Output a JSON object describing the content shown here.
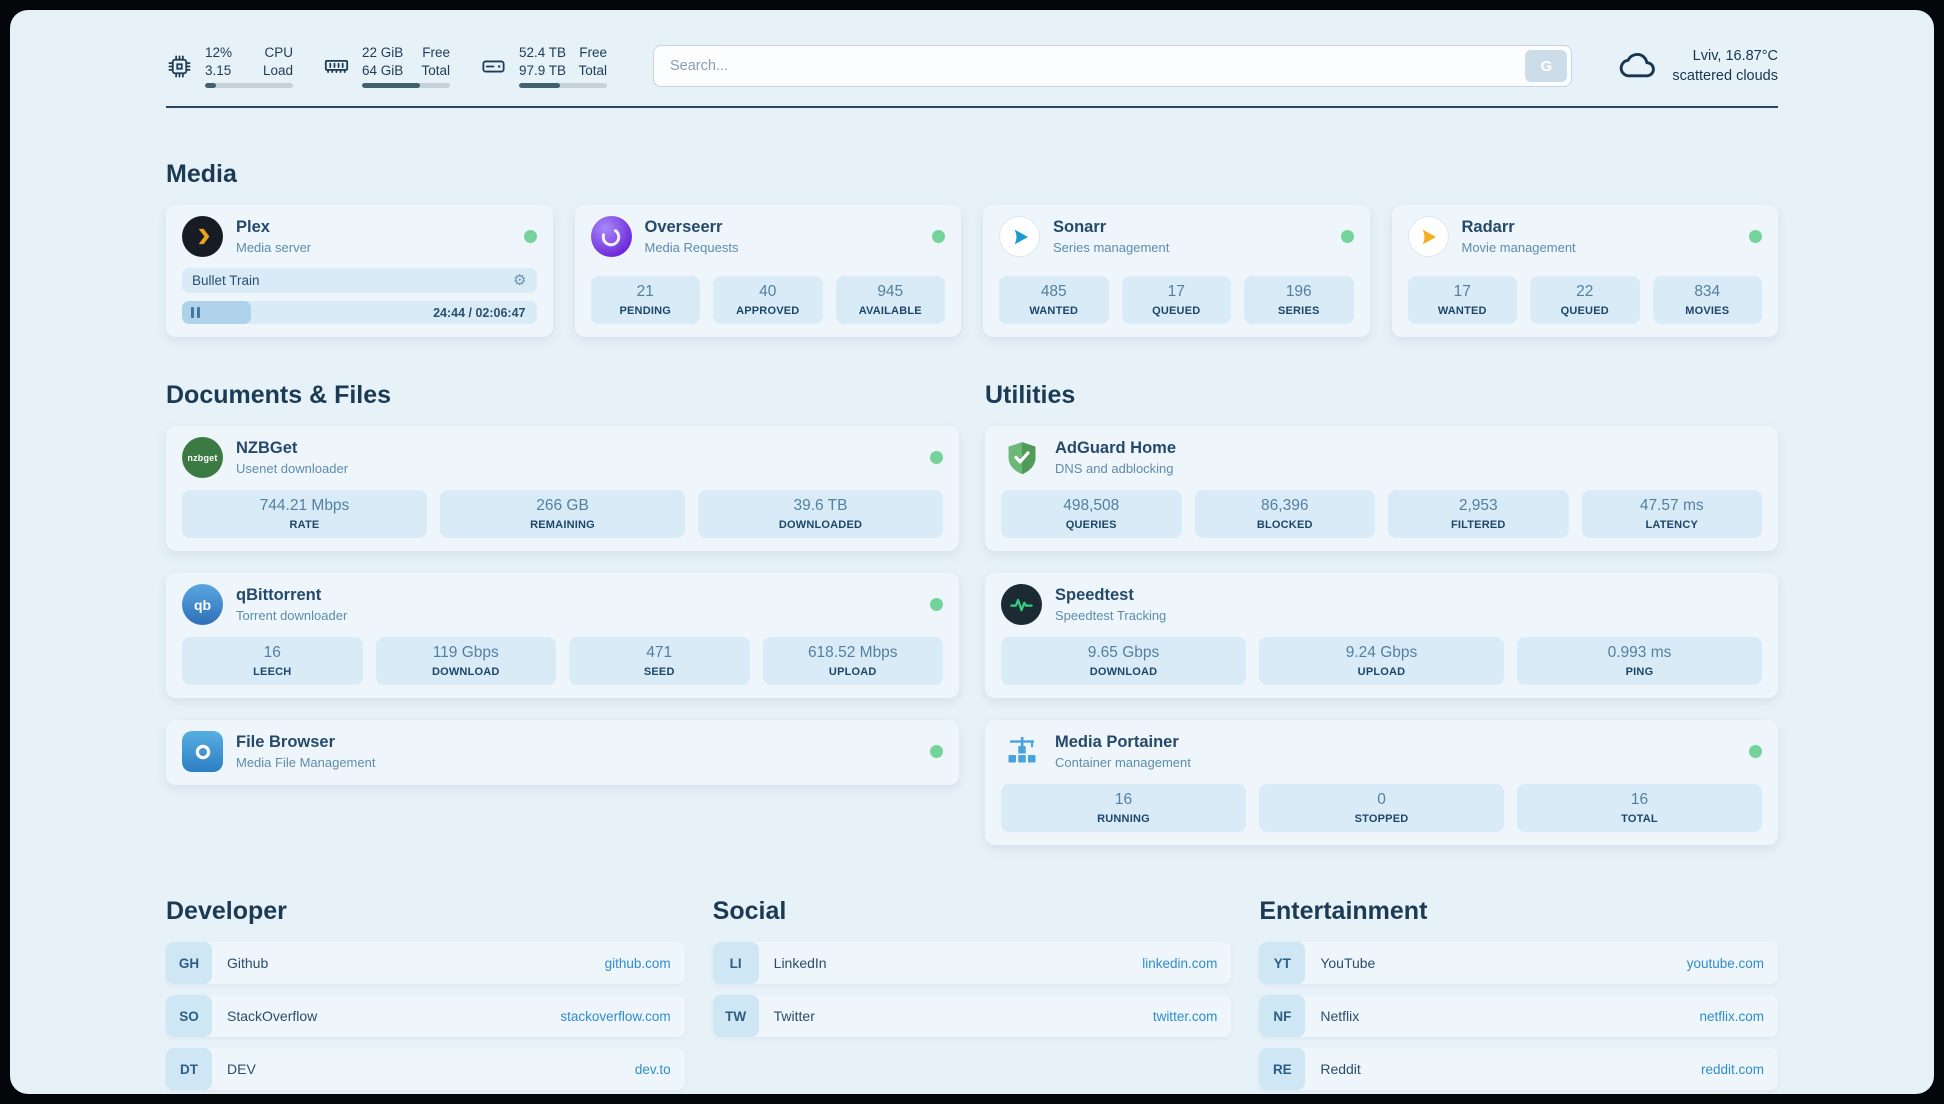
{
  "header": {
    "cpu": {
      "value": "12%",
      "sub": "3.15",
      "label_top": "CPU",
      "label_bottom": "Load",
      "progress_pct": 12
    },
    "ram": {
      "value": "22 GiB",
      "sub": "64 GiB",
      "label_top": "Free",
      "label_bottom": "Total",
      "progress_pct": 66
    },
    "disk": {
      "value": "52.4 TB",
      "sub": "97.9 TB",
      "label_top": "Free",
      "label_bottom": "Total",
      "progress_pct": 47
    },
    "search": {
      "placeholder": "Search...",
      "button_label": "G"
    },
    "weather": {
      "location": "Lviv, 16.87°C",
      "condition": "scattered clouds"
    }
  },
  "icons": {
    "gear": "⚙"
  },
  "media": {
    "title": "Media",
    "plex": {
      "name": "Plex",
      "subtitle": "Media server",
      "now_playing": "Bullet Train",
      "time": "24:44 / 02:06:47",
      "progress_pct": 19.5
    },
    "overseerr": {
      "name": "Overseerr",
      "subtitle": "Media Requests",
      "stats": [
        {
          "value": "21",
          "label": "PENDING"
        },
        {
          "value": "40",
          "label": "APPROVED"
        },
        {
          "value": "945",
          "label": "AVAILABLE"
        }
      ]
    },
    "sonarr": {
      "name": "Sonarr",
      "subtitle": "Series management",
      "stats": [
        {
          "value": "485",
          "label": "WANTED"
        },
        {
          "value": "17",
          "label": "QUEUED"
        },
        {
          "value": "196",
          "label": "SERIES"
        }
      ]
    },
    "radarr": {
      "name": "Radarr",
      "subtitle": "Movie management",
      "stats": [
        {
          "value": "17",
          "label": "WANTED"
        },
        {
          "value": "22",
          "label": "QUEUED"
        },
        {
          "value": "834",
          "label": "MOVIES"
        }
      ]
    }
  },
  "documents": {
    "title": "Documents & Files",
    "nzbget": {
      "name": "NZBGet",
      "subtitle": "Usenet downloader",
      "icon_text": "nzbget",
      "stats": [
        {
          "value": "744.21 Mbps",
          "label": "RATE"
        },
        {
          "value": "266 GB",
          "label": "REMAINING"
        },
        {
          "value": "39.6 TB",
          "label": "DOWNLOADED"
        }
      ]
    },
    "qbittorrent": {
      "name": "qBittorrent",
      "subtitle": "Torrent downloader",
      "icon_text": "qb",
      "stats": [
        {
          "value": "16",
          "label": "LEECH"
        },
        {
          "value": "119 Gbps",
          "label": "DOWNLOAD"
        },
        {
          "value": "471",
          "label": "SEED"
        },
        {
          "value": "618.52 Mbps",
          "label": "UPLOAD"
        }
      ]
    },
    "filebrowser": {
      "name": "File Browser",
      "subtitle": "Media File Management"
    }
  },
  "utilities": {
    "title": "Utilities",
    "adguard": {
      "name": "AdGuard Home",
      "subtitle": "DNS and adblocking",
      "stats": [
        {
          "value": "498,508",
          "label": "QUERIES"
        },
        {
          "value": "86,396",
          "label": "BLOCKED"
        },
        {
          "value": "2,953",
          "label": "FILTERED"
        },
        {
          "value": "47.57 ms",
          "label": "LATENCY"
        }
      ]
    },
    "speedtest": {
      "name": "Speedtest",
      "subtitle": "Speedtest Tracking",
      "stats": [
        {
          "value": "9.65 Gbps",
          "label": "DOWNLOAD"
        },
        {
          "value": "9.24 Gbps",
          "label": "UPLOAD"
        },
        {
          "value": "0.993 ms",
          "label": "PING"
        }
      ]
    },
    "portainer": {
      "name": "Media Portainer",
      "subtitle": "Container management",
      "stats": [
        {
          "value": "16",
          "label": "RUNNING"
        },
        {
          "value": "0",
          "label": "STOPPED"
        },
        {
          "value": "16",
          "label": "TOTAL"
        }
      ]
    }
  },
  "link_sections": {
    "developer": {
      "title": "Developer",
      "items": [
        {
          "abbr": "GH",
          "name": "Github",
          "url": "github.com"
        },
        {
          "abbr": "SO",
          "name": "StackOverflow",
          "url": "stackoverflow.com"
        },
        {
          "abbr": "DT",
          "name": "DEV",
          "url": "dev.to"
        }
      ]
    },
    "social": {
      "title": "Social",
      "items": [
        {
          "abbr": "LI",
          "name": "LinkedIn",
          "url": "linkedin.com"
        },
        {
          "abbr": "TW",
          "name": "Twitter",
          "url": "twitter.com"
        }
      ]
    },
    "entertainment": {
      "title": "Entertainment",
      "items": [
        {
          "abbr": "YT",
          "name": "YouTube",
          "url": "youtube.com"
        },
        {
          "abbr": "NF",
          "name": "Netflix",
          "url": "netflix.com"
        },
        {
          "abbr": "RE",
          "name": "Reddit",
          "url": "reddit.com"
        }
      ]
    }
  },
  "colors": {
    "accent_link": "#2f8ccc",
    "status_ok": "#74d39b",
    "page_bg": "#e7f1f8",
    "card_bg": "#eef6fb",
    "tile_bg": "#d9ebf7"
  }
}
